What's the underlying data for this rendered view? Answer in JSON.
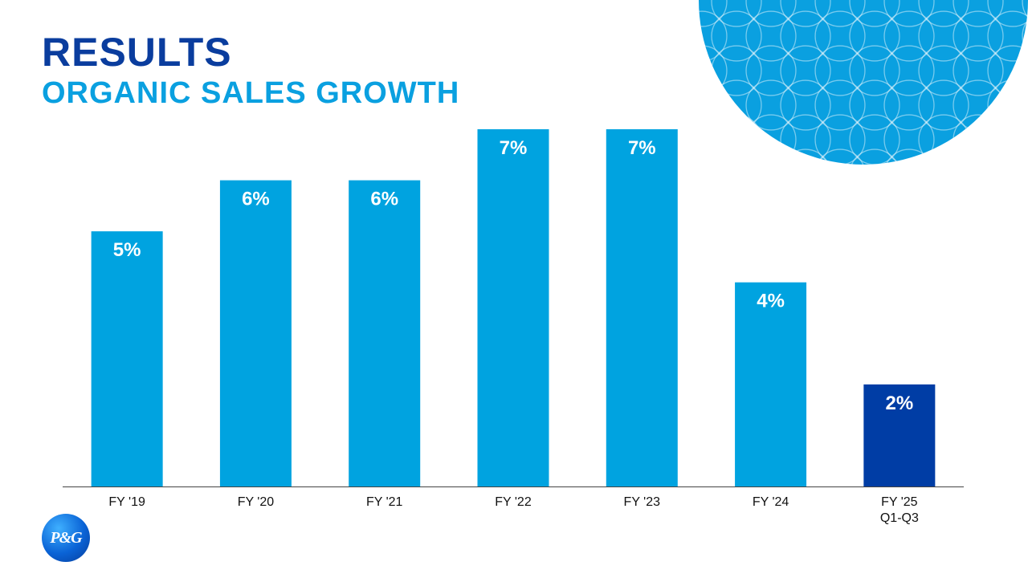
{
  "header": {
    "title": "RESULTS",
    "subtitle": "ORGANIC SALES GROWTH"
  },
  "logo": {
    "text": "P&G"
  },
  "colors": {
    "title": "#0a3d9e",
    "accent": "#0aa0e0",
    "bar_default": "#00a3e0",
    "bar_highlight": "#003da5",
    "decor_circle": "#0aa0e0"
  },
  "chart_data": {
    "type": "bar",
    "categories": [
      "FY '19",
      "FY '20",
      "FY '21",
      "FY '22",
      "FY '23",
      "FY '24",
      "FY '25\nQ1-Q3"
    ],
    "values": [
      5,
      6,
      6,
      7,
      7,
      4,
      2
    ],
    "data_labels": [
      "5%",
      "6%",
      "6%",
      "7%",
      "7%",
      "4%",
      "2%"
    ],
    "highlight_index": 6,
    "ylim": [
      0,
      7
    ],
    "grid": false,
    "legend": "none"
  }
}
